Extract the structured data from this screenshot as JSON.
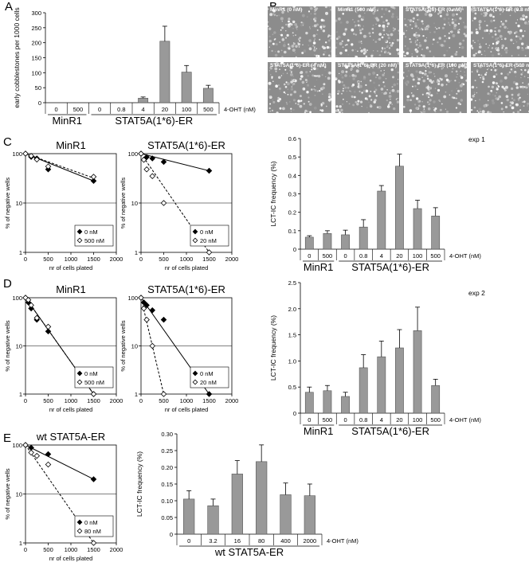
{
  "panels": {
    "A": "A",
    "B": "B",
    "C": "C",
    "D": "D",
    "E": "E"
  },
  "chart_data": [
    {
      "id": "A",
      "type": "bar",
      "ylabel": "early cobblestones per 1000 cells",
      "ylim": [
        0,
        300
      ],
      "yticks": [
        0,
        50,
        100,
        150,
        200,
        250,
        300
      ],
      "categories": [
        "0",
        "500",
        "0",
        "0.8",
        "4",
        "20",
        "100",
        "500"
      ],
      "values": [
        0,
        0,
        0,
        0,
        15,
        205,
        102,
        48
      ],
      "errors": [
        0,
        0,
        0,
        0,
        4,
        50,
        22,
        10
      ],
      "unit_label": "4-OHT (nM)",
      "groups": [
        {
          "label": "MinR1",
          "from": 0,
          "to": 1
        },
        {
          "label": "STAT5A(1*6)-ER",
          "from": 2,
          "to": 7
        }
      ]
    },
    {
      "id": "C-left",
      "type": "scatter",
      "title": "MinR1",
      "xlabel": "nr of cells plated",
      "ylabel": "% of negative wells",
      "xlim": [
        0,
        2000
      ],
      "ylog": [
        1,
        100
      ],
      "xticks": [
        0,
        500,
        1000,
        1500,
        2000
      ],
      "yticks": [
        1,
        10,
        100
      ],
      "series": [
        {
          "name": "0 nM",
          "marker": "filled",
          "line": "solid",
          "points": [
            [
              0,
              100
            ],
            [
              125,
              86
            ],
            [
              250,
              80
            ],
            [
              500,
              48
            ],
            [
              1500,
              28
            ]
          ],
          "fit": [
            [
              0,
              100
            ],
            [
              1500,
              28
            ]
          ]
        },
        {
          "name": "500 nM",
          "marker": "open",
          "line": "dashed",
          "points": [
            [
              0,
              100
            ],
            [
              125,
              90
            ],
            [
              250,
              76
            ],
            [
              500,
              55
            ],
            [
              1500,
              34
            ]
          ],
          "fit": [
            [
              0,
              100
            ],
            [
              1500,
              32
            ]
          ]
        }
      ]
    },
    {
      "id": "C-mid",
      "type": "scatter",
      "title": "STAT5A(1*6)-ER",
      "xlabel": "nr of cells plated",
      "ylabel": "% of negative wells",
      "xlim": [
        0,
        2000
      ],
      "ylog": [
        1,
        100
      ],
      "xticks": [
        0,
        500,
        1000,
        1500,
        2000
      ],
      "yticks": [
        1,
        10,
        100
      ],
      "series": [
        {
          "name": "0 nM",
          "marker": "filled",
          "line": "solid",
          "points": [
            [
              0,
              100
            ],
            [
              125,
              85
            ],
            [
              250,
              80
            ],
            [
              500,
              68
            ],
            [
              1500,
              45
            ]
          ],
          "fit": [
            [
              0,
              100
            ],
            [
              1500,
              45
            ]
          ]
        },
        {
          "name": "20 nM",
          "marker": "open",
          "line": "dashed",
          "points": [
            [
              0,
              100
            ],
            [
              62,
              75
            ],
            [
              125,
              48
            ],
            [
              250,
              35
            ],
            [
              500,
              10
            ],
            [
              1500,
              1
            ]
          ],
          "fit": [
            [
              0,
              100
            ],
            [
              1500,
              1
            ]
          ]
        }
      ]
    },
    {
      "id": "C-right",
      "type": "bar",
      "title": "exp 1",
      "ylabel": "LCT-IC frequency (%)",
      "ylim": [
        0,
        0.6
      ],
      "yticks": [
        "0",
        "0.1",
        "0.2",
        "0.3",
        "0.4",
        "0.5",
        "0.6"
      ],
      "categories": [
        "0",
        "500",
        "0",
        "0.8",
        "4",
        "20",
        "100",
        "500"
      ],
      "values": [
        0.065,
        0.085,
        0.078,
        0.12,
        0.315,
        0.45,
        0.22,
        0.18
      ],
      "errors": [
        0.008,
        0.015,
        0.025,
        0.04,
        0.03,
        0.065,
        0.045,
        0.045
      ],
      "unit_label": "4-OHT (nM)",
      "groups": [
        {
          "label": "MinR1",
          "from": 0,
          "to": 1
        },
        {
          "label": "STAT5A(1*6)-ER",
          "from": 2,
          "to": 7
        }
      ]
    },
    {
      "id": "D-left",
      "type": "scatter",
      "title": "MinR1",
      "xlabel": "nr of cells plated",
      "ylabel": "% of negative wells",
      "xlim": [
        0,
        2000
      ],
      "ylog": [
        1,
        100
      ],
      "xticks": [
        0,
        500,
        1000,
        1500,
        2000
      ],
      "yticks": [
        1,
        10,
        100
      ],
      "series": [
        {
          "name": "0 nM",
          "marker": "filled",
          "line": "solid",
          "points": [
            [
              0,
              100
            ],
            [
              62,
              80
            ],
            [
              125,
              60
            ],
            [
              250,
              35
            ],
            [
              500,
              20
            ],
            [
              1500,
              1
            ]
          ],
          "fit": [
            [
              0,
              100
            ],
            [
              1500,
              1
            ]
          ]
        },
        {
          "name": "500 nM",
          "marker": "open",
          "line": "dashed",
          "points": [
            [
              0,
              100
            ],
            [
              62,
              90
            ],
            [
              125,
              70
            ],
            [
              250,
              38
            ],
            [
              500,
              25
            ],
            [
              1500,
              1
            ]
          ],
          "fit": [
            [
              0,
              100
            ],
            [
              1500,
              1
            ]
          ]
        }
      ]
    },
    {
      "id": "D-mid",
      "type": "scatter",
      "title": "STAT5A(1*6)-ER",
      "xlabel": "nr of cells plated",
      "ylabel": "% of negative wells",
      "xlim": [
        0,
        2000
      ],
      "ylog": [
        1,
        100
      ],
      "xticks": [
        0,
        500,
        1000,
        1500,
        2000
      ],
      "yticks": [
        1,
        10,
        100
      ],
      "series": [
        {
          "name": "0 nM",
          "marker": "filled",
          "line": "solid",
          "points": [
            [
              0,
              100
            ],
            [
              62,
              80
            ],
            [
              125,
              70
            ],
            [
              250,
              55
            ],
            [
              500,
              35
            ],
            [
              1500,
              1
            ]
          ],
          "fit": [
            [
              0,
              100
            ],
            [
              1500,
              1
            ]
          ]
        },
        {
          "name": "20 nM",
          "marker": "open",
          "line": "dashed",
          "points": [
            [
              0,
              100
            ],
            [
              62,
              60
            ],
            [
              125,
              35
            ],
            [
              250,
              10
            ],
            [
              500,
              1
            ]
          ],
          "fit": [
            [
              0,
              100
            ],
            [
              500,
              1
            ]
          ]
        }
      ]
    },
    {
      "id": "D-right",
      "type": "bar",
      "title": "exp 2",
      "ylabel": "LCT-IC frequency (%)",
      "ylim": [
        0,
        2.5
      ],
      "yticks": [
        "0",
        "0.5",
        "1.0",
        "1.5",
        "2.0",
        "2.5"
      ],
      "categories": [
        "0",
        "500",
        "0",
        "0.8",
        "4",
        "20",
        "100",
        "500"
      ],
      "values": [
        0.4,
        0.43,
        0.32,
        0.87,
        1.08,
        1.25,
        1.58,
        0.53
      ],
      "errors": [
        0.1,
        0.1,
        0.08,
        0.25,
        0.3,
        0.35,
        0.45,
        0.12
      ],
      "unit_label": "4-OHT (nM)",
      "groups": [
        {
          "label": "MinR1",
          "from": 0,
          "to": 1
        },
        {
          "label": "STAT5A(1*6)-ER",
          "from": 2,
          "to": 7
        }
      ]
    },
    {
      "id": "E-left",
      "type": "scatter",
      "title": "wt STAT5A-ER",
      "xlabel": "nr of cells plated",
      "ylabel": "% of negative wells",
      "xlim": [
        0,
        2000
      ],
      "ylog": [
        1,
        100
      ],
      "xticks": [
        0,
        500,
        1000,
        1500,
        2000
      ],
      "yticks": [
        1,
        10,
        100
      ],
      "series": [
        {
          "name": "0 nM",
          "marker": "filled",
          "line": "solid",
          "points": [
            [
              0,
              100
            ],
            [
              125,
              88
            ],
            [
              500,
              65
            ],
            [
              1500,
              20
            ]
          ],
          "fit": [
            [
              0,
              100
            ],
            [
              1500,
              20
            ]
          ]
        },
        {
          "name": "80 nM",
          "marker": "open",
          "line": "dashed",
          "points": [
            [
              0,
              100
            ],
            [
              125,
              70
            ],
            [
              250,
              60
            ],
            [
              500,
              40
            ],
            [
              1500,
              1
            ]
          ],
          "fit": [
            [
              0,
              100
            ],
            [
              1500,
              1
            ]
          ]
        }
      ]
    },
    {
      "id": "E-right",
      "type": "bar",
      "ylabel": "LCT-IC frequency (%)",
      "ylim": [
        0,
        0.3
      ],
      "yticks": [
        "0",
        "0.05",
        "0.10",
        "0.15",
        "0.20",
        "0.25",
        "0.30"
      ],
      "categories": [
        "0",
        "3.2",
        "16",
        "80",
        "400",
        "2000"
      ],
      "values": [
        0.105,
        0.085,
        0.18,
        0.217,
        0.118,
        0.115
      ],
      "errors": [
        0.025,
        0.02,
        0.04,
        0.05,
        0.035,
        0.035
      ],
      "unit_label": "4-OHT (nM)",
      "groups": [
        {
          "label": "wt STAT5A-ER",
          "from": 0,
          "to": 5
        }
      ]
    }
  ],
  "micrographs": [
    "MinR1 (0 nM)",
    "MinR1 (500 nM)",
    "STAT5A(1*6)-ER (0 nM)",
    "STAT5A(1*6)-ER (0.8 nM)",
    "STAT5A(1*6)-ER (4 nM)",
    "STAT5A(1*6)-ER (20 nM)",
    "STAT5A(1*6)-ER (100 nM)",
    "STAT5A(1*6)-ER (500 nM)"
  ]
}
